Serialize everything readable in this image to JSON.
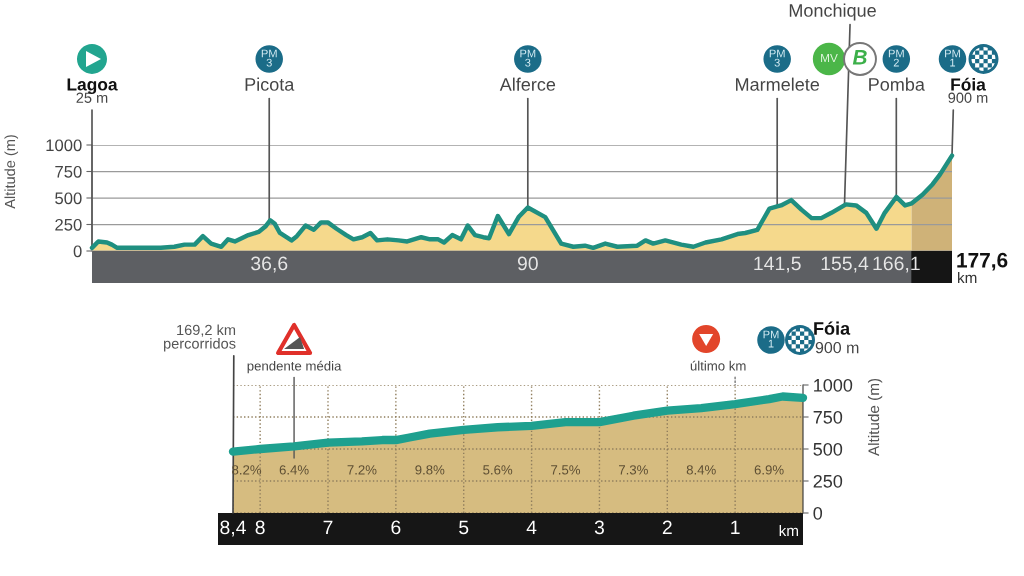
{
  "chart_data": [
    {
      "type": "area",
      "xlabel": "km",
      "ylabel": "Altitude (m)",
      "x": [
        0,
        1.3,
        3.1,
        4.1,
        5.2,
        7.2,
        10.7,
        14.2,
        17.0,
        19.1,
        21.2,
        22.9,
        24.6,
        26.7,
        28.1,
        29.5,
        32.3,
        34.4,
        35.8,
        36.8,
        37.7,
        38.8,
        41.2,
        42.3,
        44.1,
        45.8,
        47.3,
        48.7,
        50.5,
        52.5,
        54.0,
        55.8,
        57.5,
        58.9,
        61.0,
        63.3,
        65.1,
        68.0,
        69.8,
        71.5,
        72.7,
        74.4,
        76.2,
        77.6,
        79.1,
        80.8,
        82.0,
        83.8,
        86.1,
        88.1,
        90.0,
        93.6,
        96.9,
        99.4,
        101.8,
        103.5,
        106.0,
        108.5,
        112.6,
        114.3,
        115.9,
        118.4,
        121.7,
        124.2,
        126.7,
        130.0,
        133.3,
        134.9,
        137.4,
        139.9,
        141.5,
        142.3,
        144.4,
        146.5,
        148.6,
        150.6,
        152.7,
        155.7,
        157.8,
        159.9,
        162.0,
        163.7,
        166.1,
        167.9,
        169.3,
        171.5,
        173.6,
        175.1,
        177.6
      ],
      "series": [
        {
          "color": "#f5d98c",
          "values": [
            30,
            90,
            80,
            60,
            30,
            30,
            30,
            30,
            40,
            60,
            60,
            140,
            70,
            40,
            110,
            90,
            150,
            180,
            230,
            290,
            260,
            170,
            100,
            140,
            240,
            200,
            270,
            270,
            210,
            150,
            110,
            130,
            170,
            100,
            110,
            100,
            90,
            130,
            110,
            110,
            80,
            150,
            110,
            240,
            150,
            130,
            120,
            330,
            160,
            320,
            410,
            320,
            70,
            40,
            50,
            30,
            70,
            40,
            50,
            100,
            70,
            100,
            60,
            40,
            80,
            110,
            160,
            170,
            200,
            400,
            420,
            430,
            480,
            390,
            310,
            310,
            360,
            440,
            430,
            360,
            210,
            360,
            510,
            430,
            450,
            530,
            630,
            720,
            900
          ]
        },
        {
          "type": "line",
          "color": "#1f8f80",
          "values": [
            30,
            90,
            80,
            60,
            30,
            30,
            30,
            30,
            40,
            60,
            60,
            140,
            70,
            40,
            110,
            90,
            150,
            180,
            230,
            290,
            260,
            170,
            100,
            140,
            240,
            200,
            270,
            270,
            210,
            150,
            110,
            130,
            170,
            100,
            110,
            100,
            90,
            130,
            110,
            110,
            80,
            150,
            110,
            240,
            150,
            130,
            120,
            330,
            160,
            320,
            410,
            320,
            70,
            40,
            50,
            30,
            70,
            40,
            50,
            100,
            70,
            100,
            60,
            40,
            80,
            110,
            160,
            170,
            200,
            400,
            420,
            430,
            480,
            390,
            310,
            310,
            360,
            440,
            430,
            360,
            210,
            360,
            510,
            430,
            450,
            530,
            630,
            720,
            900
          ]
        }
      ],
      "xlim": [
        0,
        177.6
      ],
      "xticks": [
        {
          "value": 36.6,
          "label": "36,6"
        },
        90,
        {
          "value": 141.5,
          "label": "141,5"
        },
        {
          "value": 155.4,
          "label": "155,4"
        },
        {
          "value": 166.1,
          "label": "166,1"
        }
      ],
      "ylim": [
        0,
        1000
      ],
      "yticks": [
        0,
        250,
        500,
        750,
        1000
      ],
      "grid": "y",
      "bands": [
        {
          "axis": "x",
          "from": 169.2,
          "to": 177.6,
          "color": "#cfb278"
        }
      ],
      "annotations": [
        "Lagoa",
        {
          "text": "25 m",
          "x": 0,
          "y": 25
        },
        "PM\n3",
        {
          "text": "Picota",
          "x": 36.6,
          "y": 290
        },
        "PM\n3",
        {
          "text": "Alferce",
          "x": 90,
          "y": 410
        },
        "PM\n3",
        {
          "text": "Marmelete",
          "x": 141.5,
          "y": 420
        },
        {
          "text": "Monchique",
          "x": 155.4,
          "y": 440
        },
        "MV",
        "B",
        "PM\n2",
        {
          "text": "Pomba",
          "x": 166.1,
          "y": 510
        },
        "PM\n1",
        "Fóia",
        {
          "text": "900 m",
          "x": 177.6,
          "y": 900
        },
        "177,6"
      ]
    },
    {
      "type": "area",
      "xlabel": "km",
      "ylabel": "Altitude (m)",
      "x": [
        8.4,
        8,
        7.5,
        7,
        6.5,
        6.2,
        6,
        5.8,
        5.5,
        5,
        4.5,
        4,
        3.5,
        3,
        2.5,
        2,
        1.5,
        1,
        0.5,
        0.3,
        0
      ],
      "series": [
        {
          "color": "#d6bc80",
          "values": [
            480,
            500,
            520,
            550,
            560,
            570,
            570,
            590,
            620,
            650,
            670,
            680,
            710,
            710,
            760,
            800,
            820,
            850,
            890,
            910,
            900
          ]
        },
        {
          "type": "line",
          "color": "#1ea08f",
          "values": [
            480,
            500,
            520,
            550,
            560,
            570,
            570,
            590,
            620,
            650,
            670,
            680,
            710,
            710,
            760,
            800,
            820,
            850,
            890,
            910,
            900
          ]
        }
      ],
      "xlim": [
        8.4,
        0
      ],
      "xticks": [
        {
          "value": 8.4,
          "label": "8,4"
        },
        8,
        7,
        6,
        5,
        4,
        3,
        2,
        1
      ],
      "ylim": [
        0,
        1000
      ],
      "yticks": [
        0,
        250,
        500,
        750,
        1000
      ],
      "grid": true,
      "annotations": [
        "169,2 km\npercorridos",
        "pendente média",
        "último km",
        "PM\n1",
        "Fóia",
        "900 m",
        "8.2%",
        "6.4%",
        "7.2%",
        "9.8%",
        "5.6%",
        "7.5%",
        "7.3%",
        "8.4%",
        "6.9%"
      ]
    }
  ]
}
